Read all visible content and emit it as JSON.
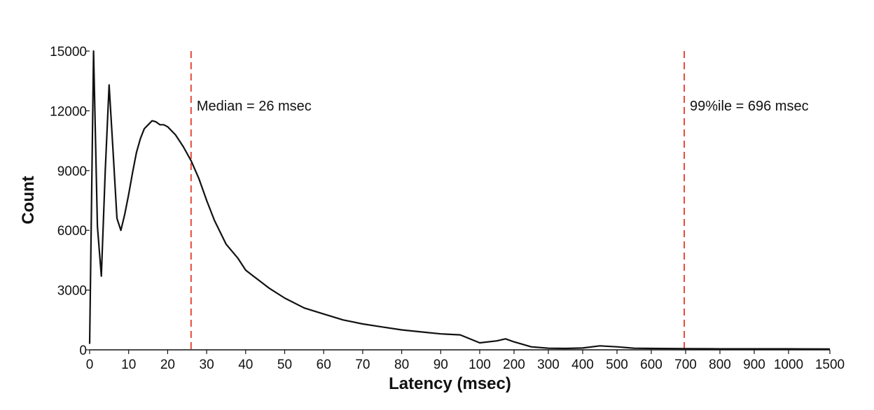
{
  "chart_data": {
    "type": "line",
    "xlabel": "Latency (msec)",
    "ylabel": "Count",
    "ylim": [
      0,
      15000
    ],
    "y_ticks": [
      0,
      3000,
      6000,
      9000,
      12000,
      15000
    ],
    "y_tick_labels": [
      "0",
      "3000",
      "6000",
      "9000",
      "12000",
      "15000"
    ],
    "x_scale": "piecewise-linear (1 msec per unit from 0-100, 100 msec per unit from 100-1000, 500 msec per unit from 1000-1500)",
    "x_ticks": [
      0,
      10,
      20,
      30,
      40,
      50,
      60,
      70,
      80,
      90,
      100,
      200,
      300,
      400,
      500,
      600,
      700,
      800,
      900,
      1000,
      1500
    ],
    "x_tick_labels": [
      "0",
      "10",
      "20",
      "30",
      "40",
      "50",
      "60",
      "70",
      "80",
      "90",
      "100",
      "200",
      "300",
      "400",
      "500",
      "600",
      "700",
      "800",
      "900",
      "1000",
      "1500"
    ],
    "grid": false,
    "series": [
      {
        "color": "#111111",
        "x": [
          0,
          1,
          2,
          3,
          4,
          5,
          6,
          7,
          8,
          9,
          10,
          11,
          12,
          13,
          14,
          15,
          16,
          17,
          18,
          19,
          20,
          22,
          24,
          26,
          28,
          30,
          32,
          35,
          38,
          40,
          42,
          44,
          46,
          50,
          55,
          60,
          65,
          70,
          75,
          80,
          85,
          90,
          95,
          100,
          150,
          175,
          200,
          250,
          300,
          350,
          400,
          450,
          500,
          550,
          600,
          700,
          800,
          900,
          1000,
          1500
        ],
        "y": [
          300,
          15000,
          6200,
          3700,
          9000,
          13300,
          10000,
          6600,
          6000,
          6800,
          7800,
          8900,
          9900,
          10600,
          11100,
          11300,
          11500,
          11450,
          11300,
          11300,
          11200,
          10800,
          10200,
          9500,
          8600,
          7500,
          6500,
          5300,
          4600,
          4000,
          3700,
          3400,
          3100,
          2600,
          2100,
          1800,
          1500,
          1300,
          1150,
          1000,
          900,
          800,
          750,
          350,
          450,
          550,
          400,
          150,
          80,
          70,
          90,
          200,
          150,
          80,
          70,
          60,
          50,
          50,
          50,
          40
        ]
      }
    ],
    "annotations": [
      {
        "label": "Median = 26 msec",
        "x": 26,
        "line_color": "#e64a3b"
      },
      {
        "label": "99%ile = 696 msec",
        "x": 696,
        "line_color": "#e64a3b"
      }
    ]
  }
}
